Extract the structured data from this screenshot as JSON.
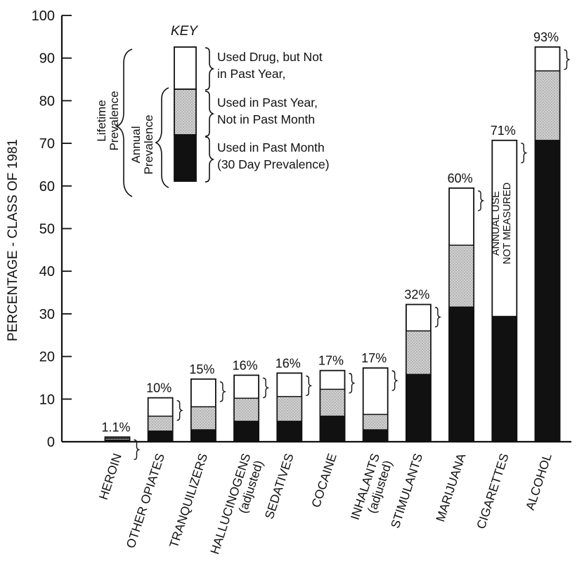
{
  "chart_data": {
    "type": "bar",
    "stacked": true,
    "ylabel": "PERCENTAGE - CLASS OF 1981",
    "ylim": [
      0,
      100
    ],
    "yticks": [
      0,
      10,
      20,
      30,
      40,
      50,
      60,
      70,
      80,
      90,
      100
    ],
    "grid": false,
    "categories": [
      {
        "lines": [
          "HEROIN"
        ]
      },
      {
        "lines": [
          "OTHER OPIATES"
        ]
      },
      {
        "lines": [
          "TRANQUILIZERS"
        ]
      },
      {
        "lines": [
          "HALLUCINOGENS",
          "(adjusted)"
        ]
      },
      {
        "lines": [
          "SEDATIVES"
        ]
      },
      {
        "lines": [
          "COCAINE"
        ]
      },
      {
        "lines": [
          "INHALANTS",
          "(adjusted)"
        ]
      },
      {
        "lines": [
          "STIMULANTS"
        ]
      },
      {
        "lines": [
          "MARIJUANA"
        ]
      },
      {
        "lines": [
          "CIGARETTES"
        ]
      },
      {
        "lines": [
          "ALCOHOL"
        ]
      }
    ],
    "totals": [
      "1.1%",
      "10%",
      "15%",
      "16%",
      "16%",
      "17%",
      "17%",
      "32%",
      "60%",
      "71%",
      "93%"
    ],
    "past_month": [
      0.4,
      2.5,
      2.8,
      4.8,
      4.8,
      6.0,
      2.8,
      15.8,
      31.6,
      29.4,
      70.7
    ],
    "annual": [
      0.8,
      6.0,
      8.2,
      10.2,
      10.6,
      12.3,
      6.4,
      26.0,
      46.1,
      null,
      87.0
    ],
    "lifetime": [
      1.1,
      10.3,
      14.7,
      15.6,
      16.1,
      16.7,
      17.3,
      32.2,
      59.5,
      70.7,
      92.6
    ],
    "annotations": [
      {
        "category_index": 9,
        "lines": [
          "ANNUAL USE",
          "NOT MEASURED"
        ]
      }
    ],
    "legend": {
      "title": "KEY",
      "position": "top-left",
      "items": [
        {
          "lines": [
            "Used Drug, but Not",
            "in Past Year,"
          ],
          "color": "#ffffff"
        },
        {
          "lines": [
            "Used in Past Year,",
            "Not in Past Month"
          ],
          "color": "#c4c4c4"
        },
        {
          "lines": [
            "Used in Past Month",
            "(30 Day Prevalence)"
          ],
          "color": "#111111"
        }
      ],
      "bracket_labels": [
        {
          "lines": [
            "Lifetime",
            "Prevalence"
          ]
        },
        {
          "lines": [
            "Annual",
            "Prevalence"
          ]
        }
      ]
    }
  }
}
